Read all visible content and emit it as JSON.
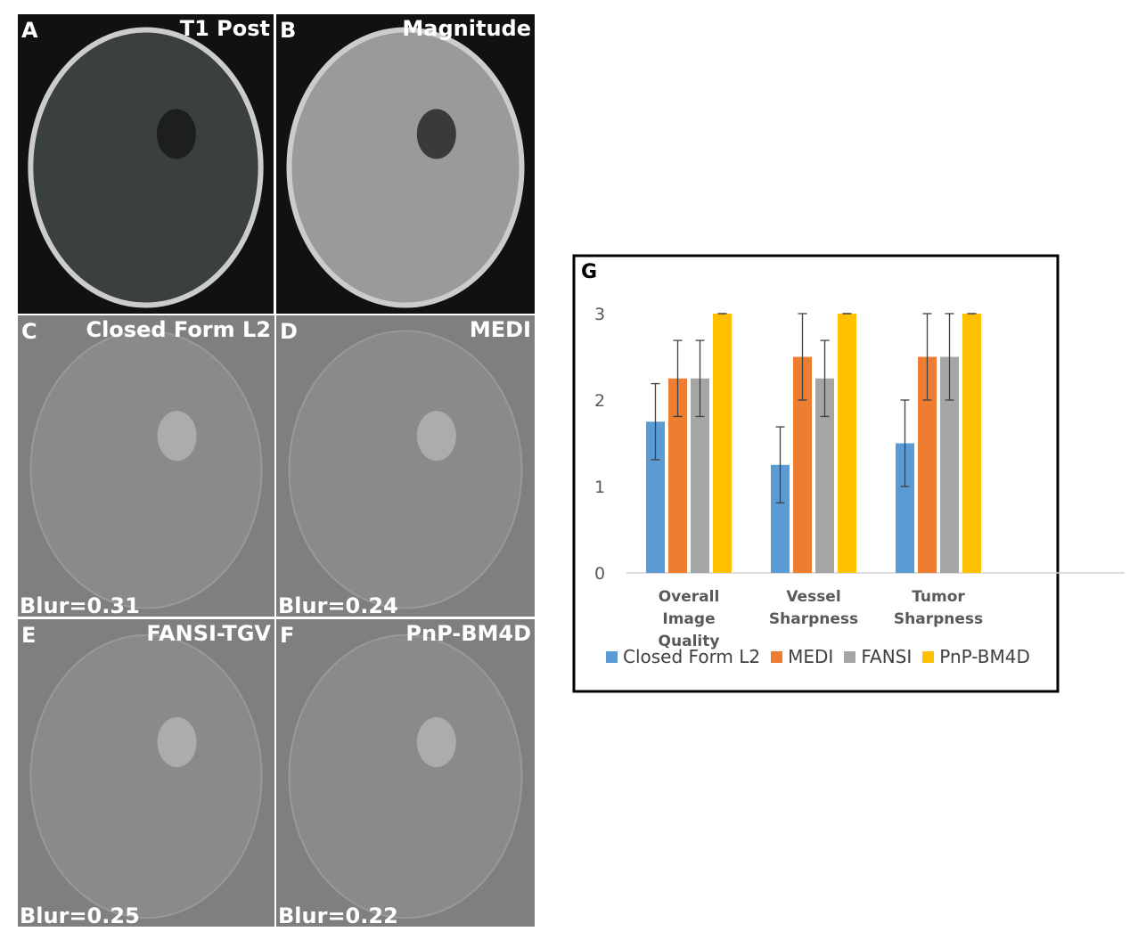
{
  "panels": [
    {
      "letter": "A",
      "title": "T1 Post"
    },
    {
      "letter": "B",
      "title": "Magnitude"
    },
    {
      "letter": "C",
      "title": "Closed Form L2",
      "blur": "Blur=0.31"
    },
    {
      "letter": "D",
      "title": "MEDI",
      "blur": "Blur=0.24"
    },
    {
      "letter": "E",
      "title": "FANSI-TGV",
      "blur": "Blur=0.25"
    },
    {
      "letter": "F",
      "title": "PnP-BM4D",
      "blur": "Blur=0.22"
    }
  ],
  "chart_data": {
    "type": "bar",
    "panel_label": "G",
    "categories": [
      "Overall Image Quality",
      "Vessel Sharpness",
      "Tumor Sharpness"
    ],
    "series": [
      {
        "name": "Closed Form L2",
        "color": "#5b9bd5",
        "values": [
          1.75,
          1.25,
          1.5
        ],
        "errors": [
          0.44,
          0.44,
          0.5
        ]
      },
      {
        "name": "MEDI",
        "color": "#ed7d31",
        "values": [
          2.25,
          2.5,
          2.5
        ],
        "errors": [
          0.44,
          0.5,
          0.5
        ]
      },
      {
        "name": "FANSI",
        "color": "#a5a5a5",
        "values": [
          2.25,
          2.25,
          2.5
        ],
        "errors": [
          0.44,
          0.44,
          0.5
        ]
      },
      {
        "name": "PnP-BM4D",
        "color": "#ffc000",
        "values": [
          3,
          3,
          3
        ],
        "errors": [
          0,
          0,
          0
        ]
      }
    ],
    "ylim": [
      0,
      3
    ],
    "yticks": [
      0,
      1,
      2,
      3
    ],
    "grid": false,
    "legend": "bottom"
  }
}
